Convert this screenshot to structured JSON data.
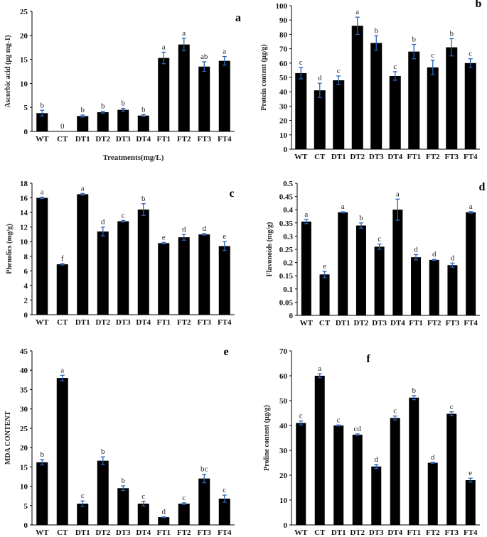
{
  "figure": {
    "panels": [
      "a",
      "b",
      "c",
      "d",
      "e",
      "f"
    ]
  },
  "chart_data": [
    {
      "type": "bar",
      "panel_letter": "a",
      "title": "",
      "xlabel": "Treatments(mg/L)",
      "ylabel": "Ascorbic acid (µg mg-1)",
      "categories": [
        "WT",
        "CT",
        "DT1",
        "DT2",
        "DT3",
        "DT4",
        "FT1",
        "FT2",
        "FT3",
        "FT4"
      ],
      "values": [
        3.8,
        0,
        3.2,
        4.0,
        4.5,
        3.3,
        15.3,
        18.1,
        13.5,
        14.7
      ],
      "errors": [
        0.6,
        0,
        0.2,
        0.2,
        0.3,
        0.2,
        1.2,
        1.3,
        1.0,
        0.9
      ],
      "letters": [
        "b",
        "0",
        "b",
        "b",
        "b",
        "b",
        "a",
        "a",
        "ab",
        "a"
      ],
      "ylim": [
        0,
        25
      ],
      "yticks": [
        0,
        5,
        10,
        15,
        20,
        25
      ],
      "grid": false
    },
    {
      "type": "bar",
      "panel_letter": "b",
      "title": "",
      "xlabel": "",
      "ylabel": "Protein content (µg/g)",
      "categories": [
        "WT",
        "CT",
        "DT1",
        "DT2",
        "DT3",
        "DT4",
        "FT1",
        "FT2",
        "FT3",
        "FT4"
      ],
      "values": [
        53,
        41,
        48,
        86,
        74,
        51,
        68,
        57,
        71,
        60
      ],
      "errors": [
        4,
        5,
        3,
        6,
        5,
        3,
        5,
        5,
        6,
        3
      ],
      "letters": [
        "c",
        "d",
        "c",
        "a",
        "b",
        "c",
        "b",
        "c",
        "b",
        "c"
      ],
      "ylim": [
        0,
        100
      ],
      "yticks": [
        0,
        10,
        20,
        30,
        40,
        50,
        60,
        70,
        80,
        90,
        100
      ],
      "grid": false
    },
    {
      "type": "bar",
      "panel_letter": "c",
      "title": "",
      "xlabel": "",
      "ylabel": "Phenolics (mg/g)",
      "categories": [
        "WT",
        "CT",
        "DT1",
        "DT2",
        "DT3",
        "DT4",
        "FT1",
        "FT2",
        "FT3",
        "FT4"
      ],
      "values": [
        16.0,
        6.9,
        16.5,
        11.4,
        12.8,
        14.4,
        9.8,
        10.6,
        11.0,
        9.4
      ],
      "errors": [
        0.1,
        0.1,
        0.1,
        0.6,
        0.1,
        0.8,
        0.1,
        0.4,
        0.1,
        0.6
      ],
      "letters": [
        "a",
        "f",
        "a",
        "d",
        "c",
        "b",
        "e",
        "d",
        "d",
        "e"
      ],
      "ylim": [
        0,
        18
      ],
      "yticks": [
        0,
        2,
        4,
        6,
        8,
        10,
        12,
        14,
        16,
        18
      ],
      "grid": false
    },
    {
      "type": "bar",
      "panel_letter": "d",
      "title": "",
      "xlabel": "",
      "ylabel": "Flavonoids (mg/g)",
      "categories": [
        "WT",
        "CT",
        "DT1",
        "DT2",
        "DT3",
        "DT4",
        "FT1",
        "FT2",
        "FT3",
        "FT4"
      ],
      "values": [
        0.355,
        0.155,
        0.39,
        0.34,
        0.26,
        0.4,
        0.22,
        0.21,
        0.19,
        0.39
      ],
      "errors": [
        0.008,
        0.012,
        0.002,
        0.01,
        0.01,
        0.04,
        0.01,
        0.002,
        0.008,
        0.003
      ],
      "letters": [
        "a",
        "e",
        "a",
        "b",
        "c",
        "a",
        "d",
        "d",
        "d",
        "a"
      ],
      "ylim": [
        0,
        0.5
      ],
      "yticks": [
        0,
        0.05,
        0.1,
        0.15,
        0.2,
        0.25,
        0.3,
        0.35,
        0.4,
        0.45,
        0.5
      ],
      "grid": false
    },
    {
      "type": "bar",
      "panel_letter": "e",
      "title": "",
      "xlabel": "",
      "ylabel": "MDA CONTENT",
      "categories": [
        "WT",
        "CT",
        "DT1",
        "DT2",
        "DT3",
        "DT4",
        "FT1",
        "FT2",
        "FT3",
        "FT4"
      ],
      "values": [
        16.2,
        38.0,
        5.5,
        16.6,
        9.5,
        5.5,
        2.0,
        5.5,
        12.0,
        6.8
      ],
      "errors": [
        0.7,
        0.7,
        0.7,
        1.0,
        0.6,
        0.6,
        0.1,
        0.2,
        1.1,
        0.9
      ],
      "letters": [
        "b",
        "a",
        "c",
        "b",
        "b",
        "c",
        "d",
        "c",
        "bc",
        "c"
      ],
      "ylim": [
        0,
        45
      ],
      "yticks": [
        0,
        5,
        10,
        15,
        20,
        25,
        30,
        35,
        40,
        45
      ],
      "grid": false
    },
    {
      "type": "bar",
      "panel_letter": "f",
      "title": "",
      "xlabel": "",
      "ylabel": "Proline content (µg/g)",
      "categories": [
        "WT",
        "CT",
        "DT1",
        "DT2",
        "DT3",
        "DT4",
        "FT1",
        "FT2",
        "FT3",
        "FT4"
      ],
      "values": [
        41.0,
        60.0,
        40.0,
        36.3,
        23.5,
        43.0,
        51.2,
        25.0,
        44.7,
        18.0
      ],
      "errors": [
        0.8,
        0.8,
        0.2,
        0.3,
        0.8,
        0.8,
        0.8,
        0.2,
        0.8,
        0.8
      ],
      "letters": [
        "c",
        "a",
        "c",
        "cd",
        "d",
        "c",
        "b",
        "d",
        "c",
        "e"
      ],
      "ylim": [
        0,
        70
      ],
      "yticks": [
        0,
        10,
        20,
        30,
        40,
        50,
        60,
        70
      ],
      "grid": false
    }
  ]
}
